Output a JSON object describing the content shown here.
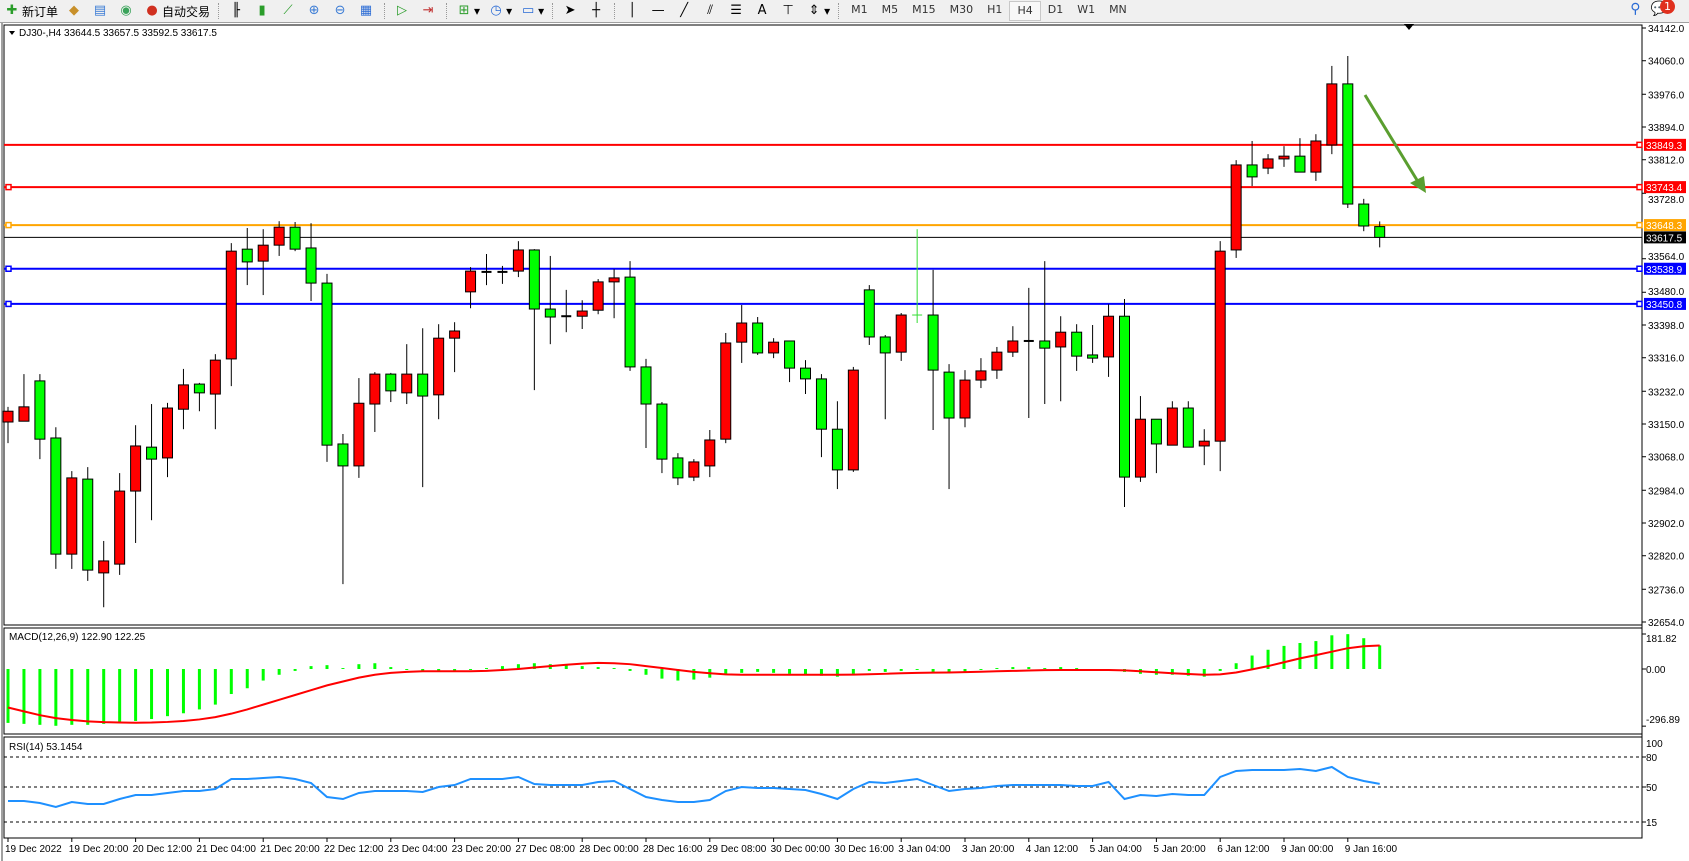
{
  "toolbar": {
    "new_order_label": "新订单",
    "auto_trading_label": "自动交易",
    "timeframes": [
      "M1",
      "M5",
      "M15",
      "M30",
      "H1",
      "H4",
      "D1",
      "W1",
      "MN"
    ],
    "active_timeframe": "H4",
    "notification_count": "1"
  },
  "chart": {
    "header": "DJ30-,H4  33644.5 33657.5 33592.5 33617.5",
    "colors": {
      "bull": "#ff0000",
      "bear": "#00ff00",
      "macd_hist": "#00ff00",
      "macd_signal": "#ff0000",
      "rsi": "#1e90ff",
      "arrow": "#5a9e2f"
    },
    "price_ticks": [
      "34142.0",
      "34060.0",
      "33976.0",
      "33894.0",
      "33812.0",
      "33728.0",
      "33564.0",
      "33480.0",
      "33398.0",
      "33316.0",
      "33232.0",
      "33150.0",
      "33068.0",
      "32984.0",
      "32902.0",
      "32820.0",
      "32736.0",
      "32654.0"
    ],
    "levels": [
      {
        "price": 33849.3,
        "label": "33849.3",
        "color": "#ff0000"
      },
      {
        "price": 33743.4,
        "label": "33743.4",
        "color": "#ff0000"
      },
      {
        "price": 33648.3,
        "label": "33648.3",
        "color": "#ffa500"
      },
      {
        "price": 33617.5,
        "label": "33617.5",
        "color": "#000000"
      },
      {
        "price": 33538.9,
        "label": "33538.9",
        "color": "#0000ff"
      },
      {
        "price": 33450.8,
        "label": "33450.8",
        "color": "#0000ff"
      }
    ],
    "time_labels": [
      "19 Dec 2022",
      "19 Dec 20:00",
      "20 Dec 12:00",
      "21 Dec 04:00",
      "21 Dec 20:00",
      "22 Dec 12:00",
      "23 Dec 04:00",
      "23 Dec 20:00",
      "27 Dec 08:00",
      "28 Dec 00:00",
      "28 Dec 16:00",
      "29 Dec 08:00",
      "30 Dec 00:00",
      "30 Dec 16:00",
      "3 Jan 04:00",
      "3 Jan 20:00",
      "4 Jan 12:00",
      "5 Jan 04:00",
      "5 Jan 20:00",
      "6 Jan 12:00",
      "9 Jan 00:00",
      "9 Jan 16:00"
    ],
    "macd": {
      "label": "MACD(12,26,9) 122.90 122.25",
      "ticks": [
        "181.82",
        "0.00",
        "-296.89"
      ]
    },
    "rsi": {
      "label": "RSI(14) 53.1454",
      "ticks": [
        "100",
        "80",
        "50",
        "15"
      ]
    }
  },
  "chart_data": {
    "type": "candlestick",
    "symbol": "DJ30-",
    "timeframe": "H4",
    "ylim": [
      32654,
      34142
    ],
    "candles_ohlc": [
      [
        33155,
        33193,
        33102,
        33182
      ],
      [
        33157,
        33275,
        33157,
        33193
      ],
      [
        33258,
        33275,
        33062,
        33112
      ],
      [
        33115,
        33142,
        32787,
        32824
      ],
      [
        32824,
        33032,
        32787,
        33015
      ],
      [
        33012,
        33042,
        32757,
        32784
      ],
      [
        32777,
        32857,
        32691,
        32807
      ],
      [
        32799,
        33027,
        32772,
        32982
      ],
      [
        32982,
        33147,
        32852,
        33095
      ],
      [
        33092,
        33200,
        32909,
        33062
      ],
      [
        33065,
        33203,
        33017,
        33190
      ],
      [
        33187,
        33288,
        33137,
        33248
      ],
      [
        33250,
        33253,
        33182,
        33228
      ],
      [
        33225,
        33325,
        33137,
        33310
      ],
      [
        33313,
        33603,
        33245,
        33583
      ],
      [
        33588,
        33641,
        33498,
        33556
      ],
      [
        33558,
        33638,
        33473,
        33598
      ],
      [
        33598,
        33658,
        33571,
        33643
      ],
      [
        33643,
        33656,
        33583,
        33588
      ],
      [
        33591,
        33653,
        33458,
        33503
      ],
      [
        33503,
        33526,
        33055,
        33097
      ],
      [
        33100,
        33125,
        32749,
        33045
      ],
      [
        33045,
        33265,
        33015,
        33202
      ],
      [
        33200,
        33280,
        33130,
        33275
      ],
      [
        33275,
        33278,
        33205,
        33233
      ],
      [
        33228,
        33350,
        33200,
        33275
      ],
      [
        33275,
        33390,
        32992,
        33220
      ],
      [
        33223,
        33400,
        33162,
        33365
      ],
      [
        33365,
        33405,
        33280,
        33383
      ],
      [
        33481,
        33543,
        33440,
        33533
      ],
      [
        33531,
        33576,
        33498,
        33531
      ],
      [
        33531,
        33546,
        33501,
        33531
      ],
      [
        33533,
        33608,
        33518,
        33586
      ],
      [
        33586,
        33588,
        33235,
        33438
      ],
      [
        33438,
        33571,
        33350,
        33418
      ],
      [
        33420,
        33486,
        33380,
        33420
      ],
      [
        33420,
        33460,
        33388,
        33433
      ],
      [
        33435,
        33513,
        33425,
        33506
      ],
      [
        33506,
        33538,
        33415,
        33516
      ],
      [
        33518,
        33558,
        33283,
        33293
      ],
      [
        33293,
        33313,
        33090,
        33200
      ],
      [
        33200,
        33205,
        33027,
        33062
      ],
      [
        33065,
        33077,
        32997,
        33015
      ],
      [
        33017,
        33062,
        33007,
        33055
      ],
      [
        33045,
        33135,
        33017,
        33110
      ],
      [
        33112,
        33378,
        33102,
        33353
      ],
      [
        33355,
        33448,
        33303,
        33403
      ],
      [
        33403,
        33418,
        33323,
        33328
      ],
      [
        33328,
        33365,
        33315,
        33355
      ],
      [
        33358,
        33358,
        33255,
        33290
      ],
      [
        33290,
        33310,
        33225,
        33263
      ],
      [
        33263,
        33275,
        33067,
        33137
      ],
      [
        33137,
        33207,
        32987,
        33035
      ],
      [
        33035,
        33293,
        33030,
        33285
      ],
      [
        33486,
        33498,
        33348,
        33368
      ],
      [
        33368,
        33373,
        33162,
        33328
      ],
      [
        33330,
        33428,
        33308,
        33423
      ],
      [
        33423,
        33638,
        33403,
        33423
      ],
      [
        33423,
        33536,
        33135,
        33285
      ],
      [
        33280,
        33300,
        32987,
        33165
      ],
      [
        33165,
        33285,
        33142,
        33260
      ],
      [
        33260,
        33315,
        33240,
        33283
      ],
      [
        33285,
        33343,
        33263,
        33330
      ],
      [
        33330,
        33395,
        33318,
        33358
      ],
      [
        33358,
        33491,
        33165,
        33358
      ],
      [
        33358,
        33558,
        33200,
        33340
      ],
      [
        33343,
        33420,
        33207,
        33380
      ],
      [
        33380,
        33400,
        33283,
        33320
      ],
      [
        33323,
        33398,
        33303,
        33315
      ],
      [
        33318,
        33450,
        33268,
        33420
      ],
      [
        33420,
        33463,
        32942,
        33017
      ],
      [
        33017,
        33220,
        33005,
        33162
      ],
      [
        33162,
        33162,
        33027,
        33100
      ],
      [
        33097,
        33207,
        33097,
        33190
      ],
      [
        33190,
        33207,
        33092,
        33092
      ],
      [
        33095,
        33137,
        33047,
        33107
      ],
      [
        33107,
        33608,
        33032,
        33583
      ],
      [
        33586,
        33811,
        33566,
        33799
      ],
      [
        33799,
        33859,
        33746,
        33769
      ],
      [
        33791,
        33826,
        33776,
        33814
      ],
      [
        33814,
        33846,
        33794,
        33821
      ],
      [
        33821,
        33866,
        33780,
        33781
      ],
      [
        33781,
        33876,
        33759,
        33859
      ],
      [
        33849,
        34047,
        33826,
        34002
      ],
      [
        34002,
        34072,
        33691,
        33701
      ],
      [
        33701,
        33714,
        33633,
        33646
      ],
      [
        33644.5,
        33657.5,
        33592.5,
        33617.5
      ]
    ],
    "marker_candle_index": 57,
    "macd_histogram": [
      -280,
      -285,
      -290,
      -295,
      -290,
      -290,
      -285,
      -280,
      -270,
      -260,
      -245,
      -230,
      -210,
      -185,
      -130,
      -100,
      -60,
      -30,
      -10,
      15,
      20,
      5,
      25,
      30,
      10,
      -5,
      -10,
      -15,
      -10,
      -5,
      5,
      15,
      25,
      30,
      25,
      20,
      15,
      10,
      5,
      -10,
      -30,
      -50,
      -60,
      -55,
      -45,
      -25,
      -20,
      -15,
      -20,
      -25,
      -30,
      -35,
      -40,
      -25,
      -10,
      -15,
      -10,
      -5,
      -15,
      -20,
      -15,
      -5,
      5,
      10,
      10,
      5,
      10,
      5,
      -5,
      0,
      -15,
      -25,
      -30,
      -30,
      -35,
      -40,
      -10,
      30,
      70,
      100,
      120,
      135,
      145,
      175,
      181,
      160,
      122.9
    ],
    "macd_signal": [
      -200,
      -220,
      -240,
      -255,
      -265,
      -272,
      -276,
      -278,
      -279,
      -278,
      -275,
      -270,
      -262,
      -250,
      -232,
      -210,
      -185,
      -160,
      -135,
      -110,
      -85,
      -65,
      -45,
      -30,
      -20,
      -15,
      -12,
      -12,
      -12,
      -12,
      -10,
      -5,
      0,
      8,
      15,
      22,
      28,
      32,
      30,
      25,
      15,
      5,
      -5,
      -15,
      -22,
      -28,
      -30,
      -30,
      -30,
      -30,
      -30,
      -30,
      -30,
      -29,
      -27,
      -25,
      -22,
      -20,
      -19,
      -18,
      -16,
      -14,
      -12,
      -10,
      -8,
      -6,
      -5,
      -5,
      -5,
      -5,
      -7,
      -12,
      -17,
      -22,
      -26,
      -30,
      -28,
      -18,
      -2,
      15,
      35,
      55,
      72,
      90,
      108,
      118,
      122.25
    ],
    "macd_ylim": [
      -296.89,
      181.82
    ],
    "rsi": [
      36,
      36,
      34,
      30,
      35,
      33,
      33,
      38,
      42,
      42,
      44,
      46,
      46,
      48,
      58,
      58,
      59,
      60,
      58,
      54,
      40,
      38,
      44,
      46,
      46,
      46,
      45,
      50,
      52,
      58,
      58,
      58,
      60,
      53,
      52,
      52,
      52,
      55,
      56,
      48,
      40,
      37,
      35,
      35,
      37,
      46,
      50,
      49,
      49,
      48,
      47,
      43,
      38,
      48,
      55,
      54,
      56,
      58,
      52,
      46,
      48,
      49,
      51,
      52,
      52,
      52,
      52,
      51,
      51,
      55,
      38,
      42,
      41,
      43,
      42,
      42,
      60,
      66,
      67,
      67,
      67,
      68,
      66,
      70,
      60,
      56,
      53.1454
    ],
    "rsi_levels": [
      80,
      50,
      15
    ],
    "rsi_ylim": [
      0,
      100
    ]
  }
}
